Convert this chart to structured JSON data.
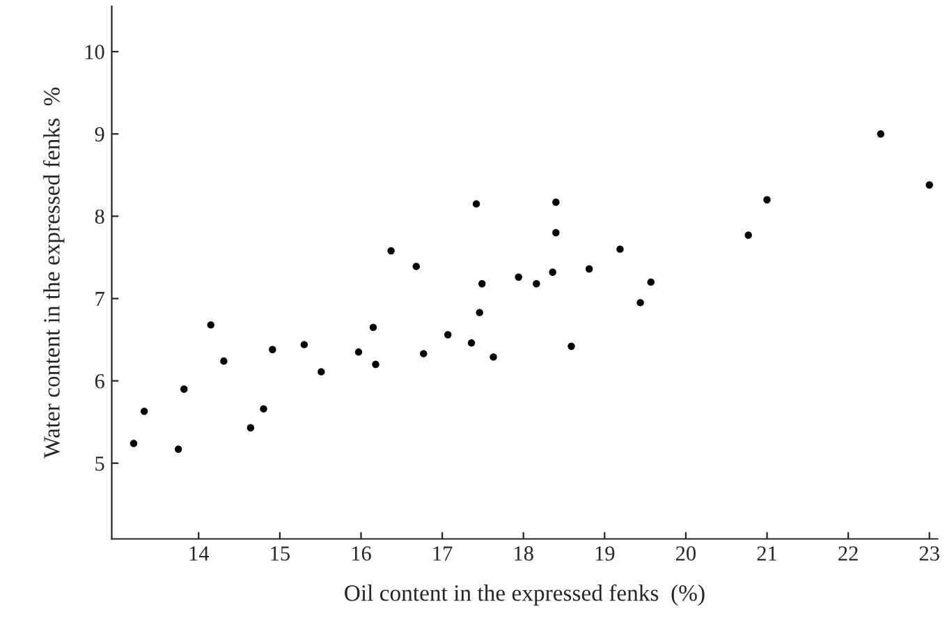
{
  "chart_data": {
    "type": "scatter",
    "xlabel": "Oil content in the expressed fenks  (%)",
    "ylabel": "Water content in the expressed fenks  %",
    "x": [
      13.2,
      13.33,
      13.82,
      13.75,
      14.15,
      14.31,
      14.64,
      14.8,
      14.91,
      15.3,
      15.51,
      15.97,
      16.15,
      16.18,
      16.37,
      16.68,
      16.77,
      17.07,
      17.36,
      17.42,
      17.46,
      17.49,
      17.63,
      17.94,
      18.16,
      18.36,
      18.4,
      18.4,
      18.81,
      19.19,
      19.57,
      19.44,
      18.59,
      20.77,
      21.0,
      22.4,
      23.0
    ],
    "values": [
      5.24,
      5.63,
      5.9,
      5.17,
      6.68,
      6.24,
      5.43,
      5.66,
      6.38,
      6.44,
      6.11,
      6.35,
      6.65,
      6.2,
      7.58,
      7.39,
      6.33,
      6.56,
      6.46,
      8.15,
      6.83,
      7.18,
      6.29,
      7.26,
      7.18,
      7.32,
      8.17,
      7.8,
      7.36,
      7.6,
      7.2,
      6.95,
      6.42,
      7.77,
      8.2,
      9.0,
      8.38
    ],
    "color": "#000000",
    "marker": "circle",
    "xlim": [
      12.93,
      23.1
    ],
    "ylim": [
      4.08,
      10.55
    ],
    "xticks": [
      14,
      15,
      16,
      17,
      18,
      19,
      20,
      21,
      22,
      23
    ],
    "yticks": [
      5,
      6,
      7,
      8,
      9,
      10
    ],
    "grid": false,
    "legend": false
  }
}
